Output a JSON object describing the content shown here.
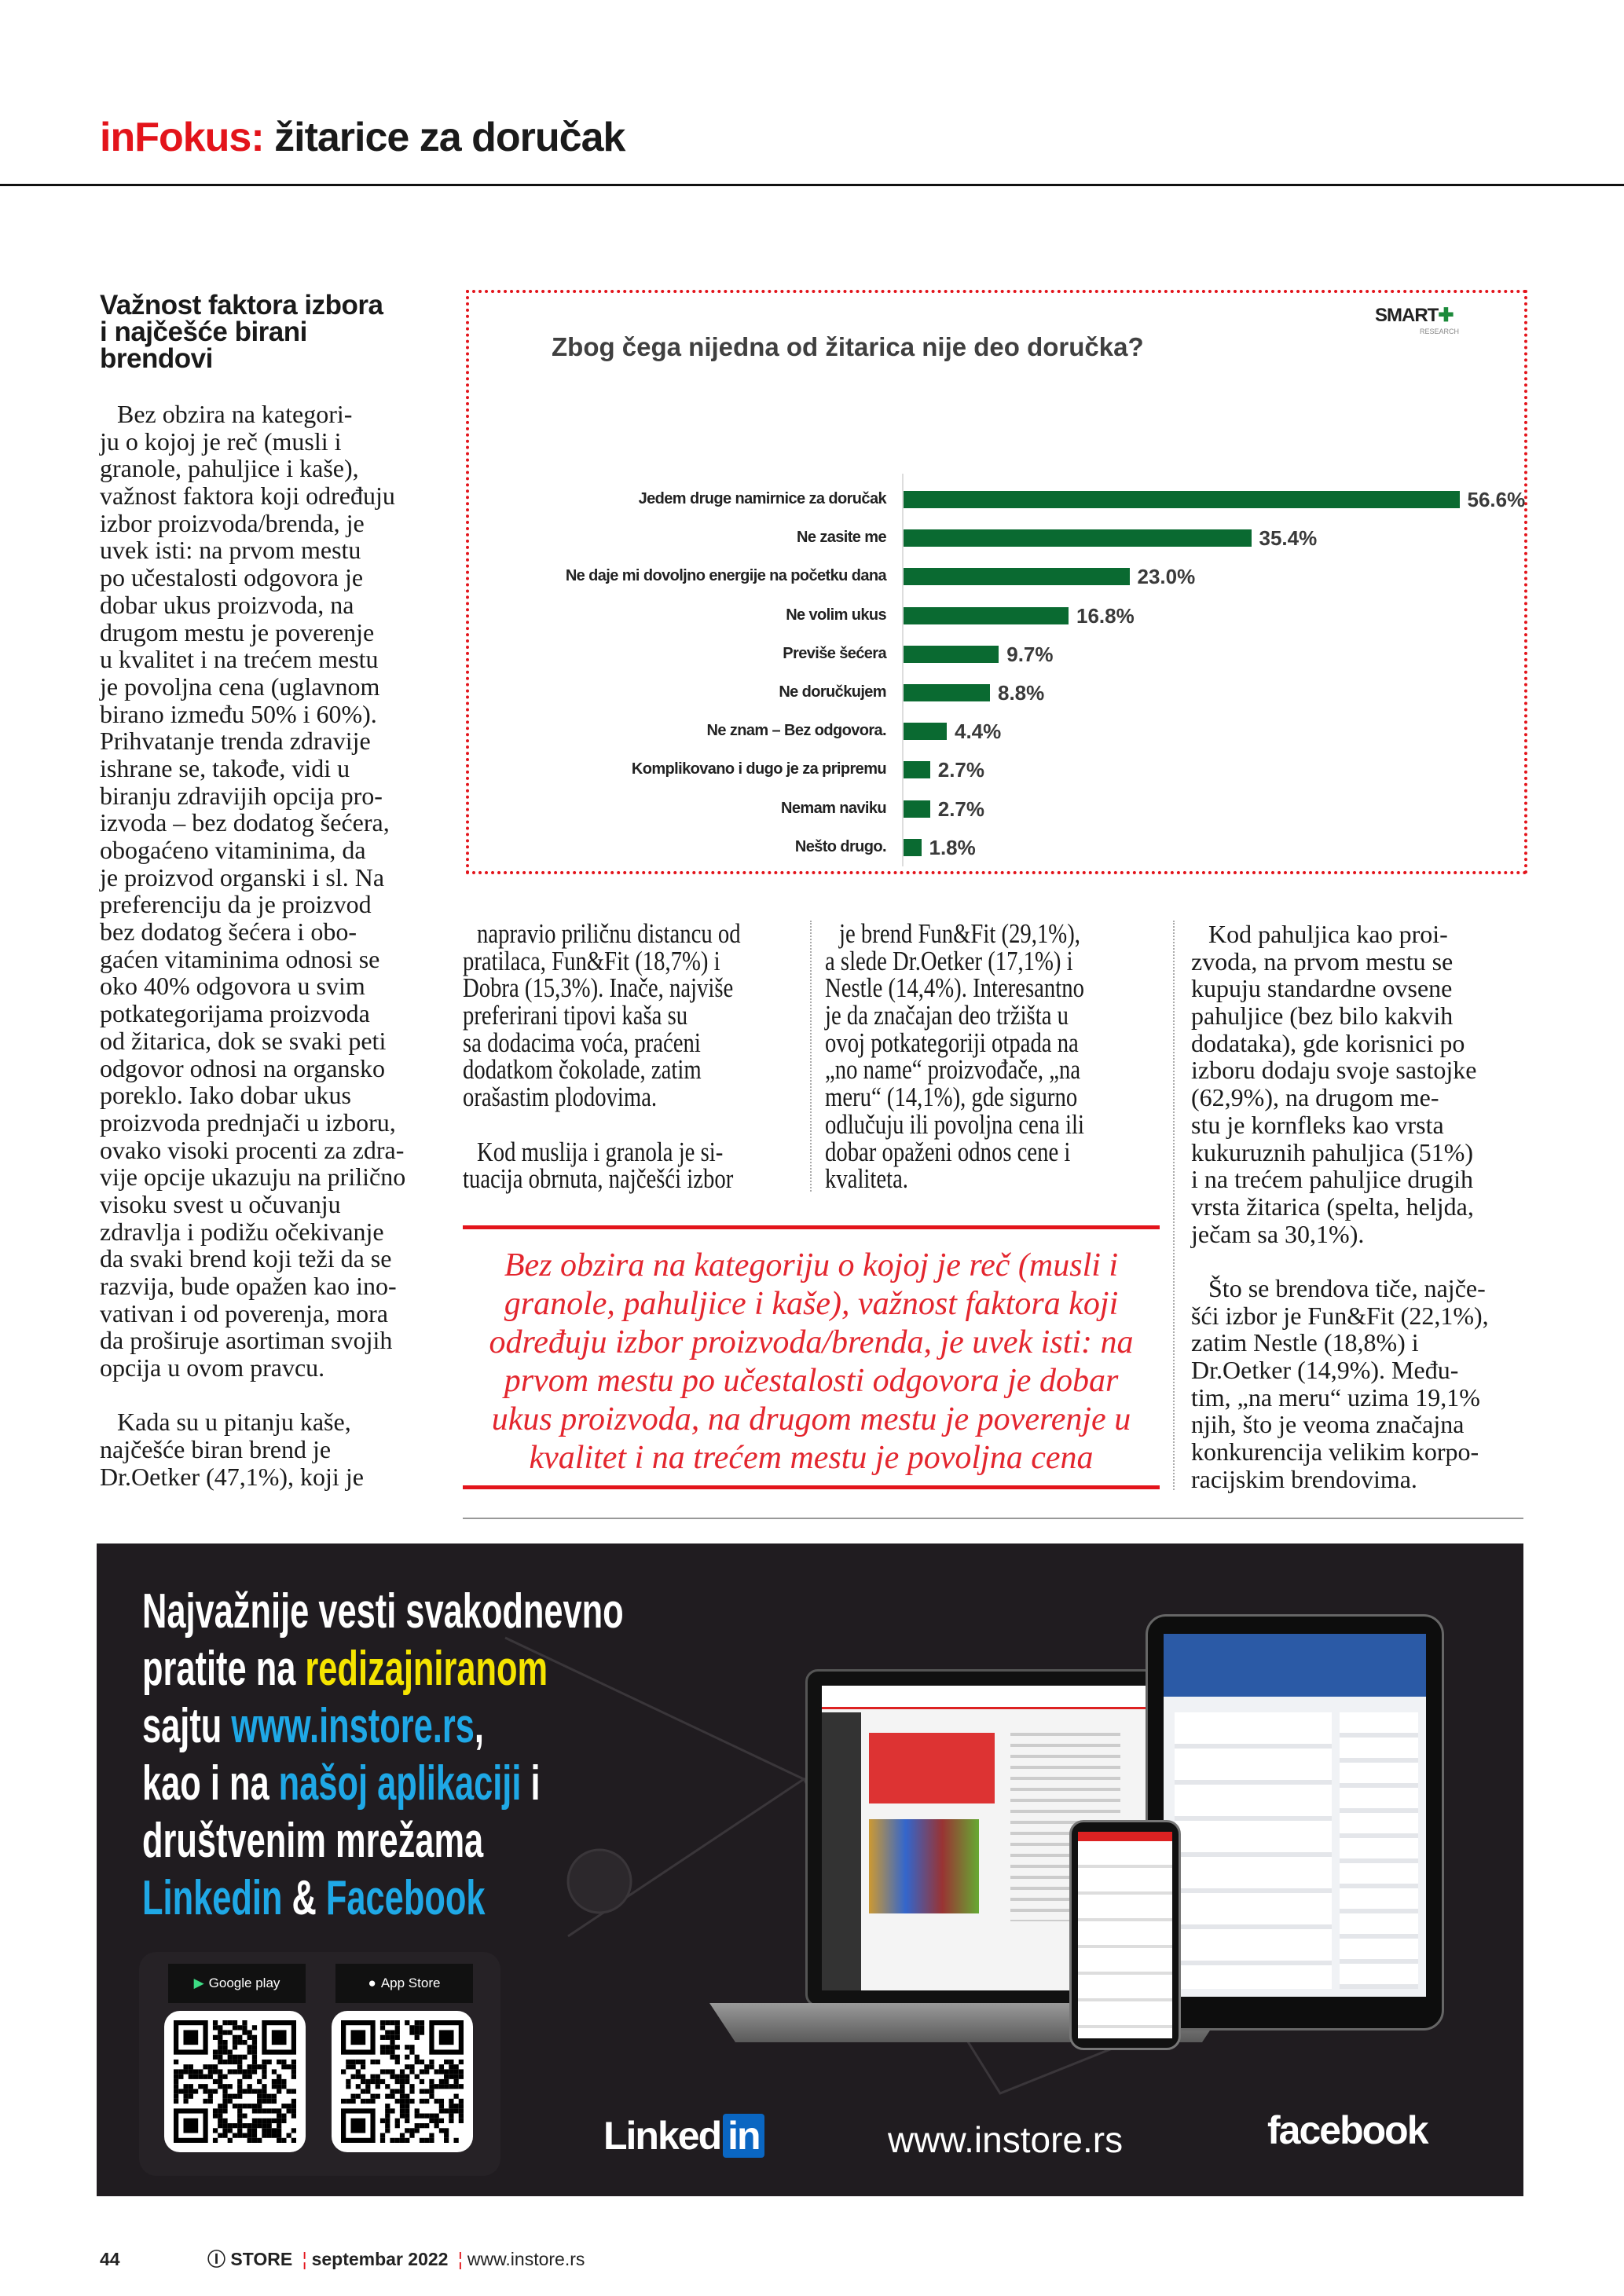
{
  "header": {
    "section": "inFokus:",
    "title": "žitarice za doručak"
  },
  "column1": {
    "heading": [
      "Važnost faktora izbora",
      "i najčešće birani",
      "brendovi"
    ],
    "paragraphs": [
      [
        "Bez obzira na kategori-",
        "ju o kojoj je reč (musli i",
        "granole, pahuljice i kaše),",
        "važnost faktora koji određuju",
        "izbor proizvoda/brenda, je",
        "uvek isti: na prvom mestu",
        "po učestalosti odgovora je",
        "dobar ukus proizvoda, na",
        "drugom mestu je poverenje",
        "u kvalitet i na trećem mestu",
        "je povoljna cena (uglavnom",
        "birano između 50% i 60%).",
        "Prihvatanje trenda zdravije",
        "ishrane se, takođe, vidi u",
        "biranju zdravijih opcija pro-",
        "izvoda – bez dodatog šećera,",
        "obogaćeno vitaminima, da",
        "je proizvod organski i sl. Na",
        "preferenciju da je proizvod",
        "bez dodatog šećera i obo-",
        "gaćen vitaminima odnosi se",
        "oko 40% odgovora u svim",
        "potkategorijama proizvoda",
        "od žitarica, dok se svaki peti",
        "odgovor odnosi na organsko",
        "poreklo. Iako dobar ukus",
        "proizvoda prednjači u izboru,",
        "ovako visoki procenti za zdra-",
        "vije opcije ukazuju na prilično",
        "visoku svest u očuvanju",
        "zdravlja i podižu očekivanje",
        "da svaki brend koji teži da se",
        "razvija, bude opažen kao ino-",
        "vativan i od poverenja, mora",
        "da proširuje asortiman svojih",
        "opcija u ovom pravcu."
      ],
      [
        "Kada su u pitanju kaše,",
        "najčešće biran brend je",
        "Dr.Oetker (47,1%), koji je"
      ]
    ]
  },
  "column2": {
    "paragraphs": [
      [
        "napravio priličnu distancu od",
        "pratilaca, Fun&Fit (18,7%) i",
        "Dobra (15,3%). Inače, najviše",
        "preferirani tipovi kaša su",
        "sa dodacima voća, praćeni",
        "dodatkom čokolade, zatim",
        "orašastim plodovima."
      ],
      [
        "Kod muslija i granola je si-",
        "tuacija obrnuta, najčešći izbor"
      ]
    ]
  },
  "column3": {
    "paragraphs": [
      [
        "je brend Fun&Fit (29,1%),",
        "a slede Dr.Oetker (17,1%) i",
        "Nestle (14,4%). Interesantno",
        "je da značajan deo tržišta u",
        "ovoj potkategoriji otpada na",
        "„no name“ proizvođače, „na",
        "meru“ (14,1%), gde sigurno",
        "odlučuju ili povoljna cena ili",
        "dobar opaženi odnos cene i",
        "kvaliteta."
      ]
    ]
  },
  "column4": {
    "paragraphs": [
      [
        "Kod pahuljica kao proi-",
        "zvoda, na prvom mestu se",
        "kupuju standardne ovsene",
        "pahuljice (bez bilo kakvih",
        "dodataka), gde korisnici po",
        "izboru dodaju svoje sastojke",
        "(62,9%), na drugom me-",
        "stu je kornfleks kao vrsta",
        "kukuruznih pahuljica (51%)",
        "i na trećem pahuljice drugih",
        "vrsta žitarica (spelta, heljda,",
        "ječam sa 30,1%)."
      ],
      [
        "Što se brendova tiče, najče-",
        "šći izbor je Fun&Fit (22,1%),",
        "zatim Nestle (18,8%) i",
        "Dr.Oetker (14,9%). Među-",
        "tim, „na meru“ uzima 19,1%",
        "njih, što je veoma značajna",
        "konkurencija velikim korpo-",
        "racijskim brendovima."
      ]
    ]
  },
  "pull_quote": [
    "Bez obzira na kategoriju o kojoj je reč (musli i",
    "granole, pahuljice i kaše), važnost faktora koji",
    "određuju izbor proizvoda/brenda, je uvek isti: na",
    "prvom mestu po učestalosti odgovora je dobar",
    "ukus proizvoda, na drugom mestu je poverenje u",
    "kvalitet i na trećem mestu je povoljna cena"
  ],
  "chart_data": {
    "type": "bar",
    "orientation": "horizontal",
    "title": "Zbog čega nijedna od žitarica nije deo doručka?",
    "source_logo": "SMART+ RESEARCH",
    "categories": [
      "Jedem druge namirnice za doručak",
      "Ne zasite me",
      "Ne daje mi dovoljno energije na početku dana",
      "Ne volim ukus",
      "Previše šećera",
      "Ne doručkujem",
      "Ne znam – Bez odgovora.",
      "Komplikovano i dugo je za pripremu",
      "Nemam naviku",
      "Nešto drugo."
    ],
    "values": [
      56.6,
      35.4,
      23.0,
      16.8,
      9.7,
      8.8,
      4.4,
      2.7,
      2.7,
      1.8
    ],
    "value_labels": [
      "56.6%",
      "35.4%",
      "23.0%",
      "16.8%",
      "9.7%",
      "8.8%",
      "4.4%",
      "2.7%",
      "2.7%",
      "1.8%"
    ],
    "unit": "%",
    "xlim": [
      0,
      60
    ],
    "grid": false,
    "bar_color": "#0a6a31",
    "frame_color": "#e3141b"
  },
  "ad": {
    "lines": [
      [
        {
          "t": "Najvažnije vesti svakodnevno",
          "c": "w"
        }
      ],
      [
        {
          "t": "pratite na ",
          "c": "w"
        },
        {
          "t": "redizajniranom",
          "c": "y"
        }
      ],
      [
        {
          "t": "sajtu ",
          "c": "w"
        },
        {
          "t": "www.instore.rs",
          "c": "b"
        },
        {
          "t": ",",
          "c": "w"
        }
      ],
      [
        {
          "t": "kao i na ",
          "c": "w"
        },
        {
          "t": "našoj aplikaciji",
          "c": "b"
        },
        {
          "t": " i",
          "c": "w"
        }
      ],
      [
        {
          "t": "društvenim mrežama",
          "c": "w"
        }
      ],
      [
        {
          "t": "Linkedin",
          "c": "b"
        },
        {
          "t": " & ",
          "c": "w"
        },
        {
          "t": "Facebook",
          "c": "b"
        }
      ]
    ],
    "google_play": "Google play",
    "app_store": "App Store",
    "linkedin": "Linked",
    "linkedin_in": "in",
    "website": "www.instore.rs",
    "facebook": "facebook",
    "colors": {
      "yellow": "#f5e400",
      "blue": "#1fa8e6",
      "background": "#201c20"
    }
  },
  "footer": {
    "page": "44",
    "magazine": "STORE",
    "issue": "septembar 2022",
    "website": "www.instore.rs"
  }
}
